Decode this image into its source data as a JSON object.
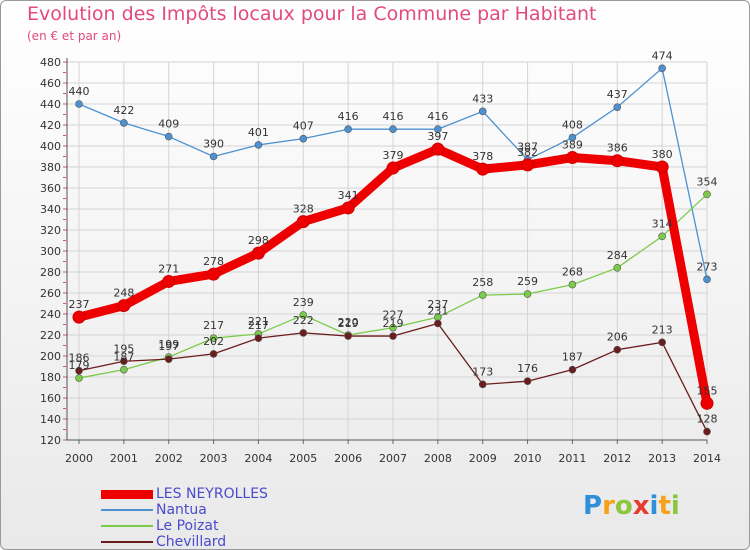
{
  "chart_data": {
    "type": "line",
    "title": "Evolution des Impôts locaux pour la Commune par Habitant",
    "subtitle": "(en € et par an)",
    "x": [
      "2000",
      "2001",
      "2002",
      "2003",
      "2004",
      "2005",
      "2006",
      "2007",
      "2008",
      "2009",
      "2010",
      "2011",
      "2012",
      "2013",
      "2014"
    ],
    "ylim": [
      120,
      480
    ],
    "yticks": [
      "120",
      "140",
      "160",
      "180",
      "200",
      "220",
      "240",
      "260",
      "280",
      "300",
      "320",
      "340",
      "360",
      "380",
      "400",
      "420",
      "440",
      "460",
      "480"
    ],
    "grid": true,
    "legend_position": "bottom-left",
    "series": [
      {
        "name": "LES NEYROLLES",
        "color": "#ee0000",
        "values": [
          237,
          248,
          271,
          278,
          298,
          328,
          341,
          379,
          397,
          378,
          382,
          389,
          386,
          380,
          155
        ]
      },
      {
        "name": "Nantua",
        "color": "#4d91d1",
        "values": [
          440,
          422,
          409,
          390,
          401,
          407,
          416,
          416,
          416,
          433,
          387,
          408,
          437,
          474,
          273
        ]
      },
      {
        "name": "Le Poizat",
        "color": "#7acb4a",
        "values": [
          179,
          187,
          199,
          217,
          221,
          239,
          220,
          227,
          237,
          258,
          259,
          268,
          284,
          314,
          354
        ]
      },
      {
        "name": "Chevillard",
        "color": "#6b1c1c",
        "values": [
          186,
          195,
          197,
          202,
          217,
          222,
          219,
          219,
          231,
          173,
          176,
          187,
          206,
          213,
          128
        ]
      }
    ]
  },
  "logo": {
    "letters": [
      "P",
      "r",
      "o",
      "x",
      "i",
      "t",
      "i"
    ],
    "colors": [
      "#2f8fd8",
      "#f7a11a",
      "#8cc63f",
      "#e63b2e",
      "#2f8fd8",
      "#f7a11a",
      "#8cc63f"
    ]
  }
}
